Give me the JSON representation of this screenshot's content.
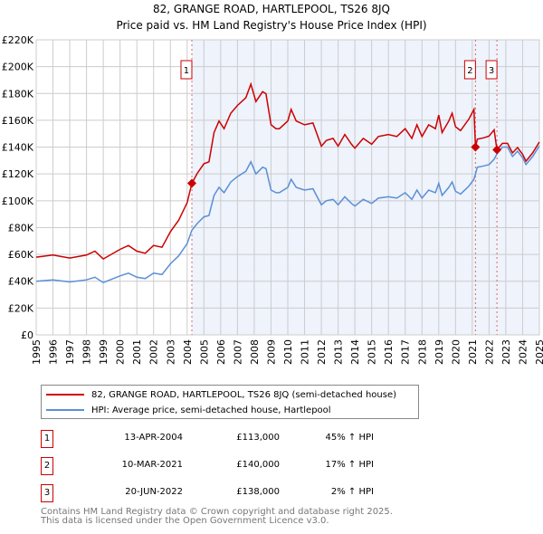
{
  "chart_data": {
    "type": "line",
    "title": "82, GRANGE ROAD, HARTLEPOOL, TS26 8JQ",
    "subtitle": "Price paid vs. HM Land Registry's House Price Index (HPI)",
    "xlabel": "",
    "ylabel": "",
    "xlim": [
      1995,
      2025
    ],
    "ylim": [
      0,
      220000
    ],
    "grid": true,
    "y_ticks": [
      0,
      20000,
      40000,
      60000,
      80000,
      100000,
      120000,
      140000,
      160000,
      180000,
      200000,
      220000
    ],
    "y_tick_labels": [
      "£0",
      "£20K",
      "£40K",
      "£60K",
      "£80K",
      "£100K",
      "£120K",
      "£140K",
      "£160K",
      "£180K",
      "£200K",
      "£220K"
    ],
    "x_ticks": [
      "1995",
      "1996",
      "1997",
      "1998",
      "1999",
      "2000",
      "2001",
      "2002",
      "2003",
      "2004",
      "2005",
      "2006",
      "2007",
      "2008",
      "2009",
      "2010",
      "2011",
      "2012",
      "2013",
      "2014",
      "2015",
      "2016",
      "2017",
      "2018",
      "2019",
      "2020",
      "2021",
      "2022",
      "2023",
      "2024",
      "2025"
    ],
    "x": [
      1995,
      1996,
      1997,
      1998,
      1998.5,
      1999,
      2000,
      2000.5,
      2001,
      2001.5,
      2002,
      2002.5,
      2003,
      2003.5,
      2004,
      2004.28,
      2004.6,
      2005,
      2005.3,
      2005.6,
      2005.9,
      2006.2,
      2006.6,
      2007,
      2007.5,
      2007.8,
      2008.1,
      2008.5,
      2008.7,
      2009,
      2009.3,
      2009.5,
      2010,
      2010.2,
      2010.5,
      2011,
      2011.5,
      2012,
      2012.3,
      2012.7,
      2013,
      2013.4,
      2013.8,
      2014,
      2014.5,
      2015,
      2015.4,
      2016,
      2016.5,
      2017,
      2017.4,
      2017.7,
      2018,
      2018.4,
      2018.8,
      2019,
      2019.2,
      2019.6,
      2019.8,
      2020,
      2020.3,
      2020.8,
      2021.1,
      2021.19,
      2021.3,
      2021.7,
      2022,
      2022.3,
      2022.47,
      2022.8,
      2023.1,
      2023.4,
      2023.7,
      2024,
      2024.2,
      2024.6,
      2025
    ],
    "series": [
      {
        "name": "82, GRANGE ROAD, HARTLEPOOL, TS26 8JQ (semi-detached house)",
        "color": "#cc0000",
        "unit": "thousand GBP",
        "values": [
          58,
          59.5,
          57.3,
          59.5,
          62.4,
          56.6,
          63.8,
          66.7,
          62.4,
          60.9,
          66.7,
          65.3,
          76.9,
          85.6,
          98.6,
          113,
          120.4,
          127.6,
          129,
          150.8,
          159.5,
          153.7,
          165.3,
          171.1,
          176.9,
          187,
          174,
          181.3,
          179.8,
          156.6,
          153.7,
          153.7,
          159.5,
          168.2,
          159.5,
          156.6,
          158,
          140.7,
          145,
          146.5,
          140.7,
          149.4,
          142.1,
          139.2,
          146.5,
          142.1,
          147.9,
          149.4,
          147.9,
          153.7,
          146.5,
          156.6,
          147.9,
          156.6,
          153.7,
          163.9,
          150.8,
          159.5,
          165.3,
          155.2,
          152.3,
          161,
          168.2,
          140,
          145.9,
          147,
          148.2,
          152.9,
          138,
          142.8,
          142.8,
          135.7,
          139.7,
          134.6,
          129.5,
          135.7,
          143.8
        ]
      },
      {
        "name": "HPI: Average price, semi-detached house, Hartlepool",
        "color": "#5b8fd6",
        "unit": "thousand GBP",
        "values": [
          40,
          41,
          39.5,
          41,
          43,
          39,
          44,
          46,
          43,
          42,
          46,
          45,
          53,
          59,
          68,
          78,
          83,
          88,
          89,
          104,
          110,
          106,
          114,
          118,
          122,
          129,
          120,
          125,
          124,
          108,
          106,
          106,
          110,
          116,
          110,
          108,
          109,
          97,
          100,
          101,
          97,
          103,
          98,
          96,
          101,
          98,
          102,
          103,
          102,
          106,
          101,
          108,
          102,
          108,
          106,
          113,
          104,
          110,
          114,
          107,
          105,
          111,
          116,
          120,
          125,
          126,
          127,
          131,
          135,
          140,
          140,
          133,
          137,
          132,
          127,
          133,
          141
        ]
      }
    ],
    "sales": [
      {
        "label": "1",
        "x": 2004.28,
        "value": 113000
      },
      {
        "label": "2",
        "x": 2021.19,
        "value": 140000
      },
      {
        "label": "3",
        "x": 2022.47,
        "value": 138000
      }
    ],
    "shade_from": 2004.28,
    "legend_position": "bottom"
  },
  "table": [
    {
      "num": "1",
      "date": "13-APR-2004",
      "price": "£113,000",
      "hpi": "45% ↑ HPI"
    },
    {
      "num": "2",
      "date": "10-MAR-2021",
      "price": "£140,000",
      "hpi": "17% ↑ HPI"
    },
    {
      "num": "3",
      "date": "20-JUN-2022",
      "price": "£138,000",
      "hpi": "2% ↑ HPI"
    }
  ],
  "footer": [
    "Contains HM Land Registry data © Crown copyright and database right 2025.",
    "This data is licensed under the Open Government Licence v3.0."
  ]
}
